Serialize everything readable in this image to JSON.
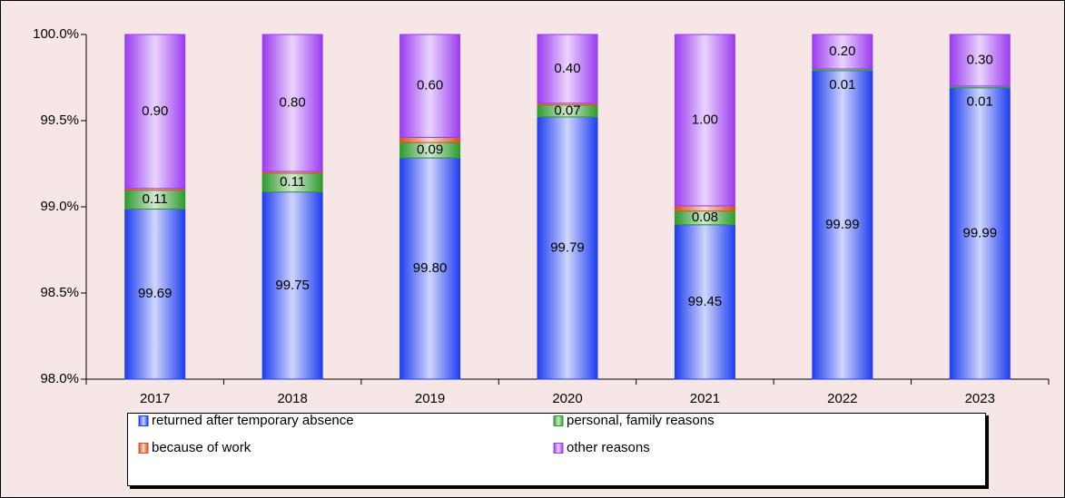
{
  "chart_data": {
    "type": "bar",
    "stacking": "percent",
    "categories": [
      "2017",
      "2018",
      "2019",
      "2020",
      "2021",
      "2022",
      "2023"
    ],
    "series": [
      {
        "name": "returned after temporary absence",
        "color": "#1f3ff0",
        "values": [
          99.69,
          99.75,
          99.8,
          99.79,
          99.45,
          99.99,
          99.99
        ]
      },
      {
        "name": "personal, family reasons",
        "color": "#2f9a2f",
        "values": [
          0.11,
          0.11,
          0.09,
          0.07,
          0.08,
          0.01,
          0.01
        ]
      },
      {
        "name": "because of work",
        "color": "#d2541e",
        "values": [
          0.01,
          0.01,
          0.03,
          0.01,
          0.03,
          null,
          null
        ]
      },
      {
        "name": "other reasons",
        "color": "#9b3cf0",
        "values": [
          0.9,
          0.8,
          0.6,
          0.4,
          1.0,
          0.2,
          0.3
        ]
      }
    ],
    "value_labels": [
      [
        "99.69",
        "99.75",
        "99.80",
        "99.79",
        "99.45",
        "99.99",
        "99.99"
      ],
      [
        "0.11",
        "0.11",
        "0.09",
        "0.07",
        "0.08",
        "0.01",
        "0.01"
      ],
      [
        "0.01",
        "0.01",
        "0.03",
        "0.01",
        "0.03",
        null,
        null
      ],
      [
        "0.90",
        "0.80",
        "0.60",
        "0.40",
        "1.00",
        "0.20",
        "0.30"
      ]
    ],
    "ylim": [
      98,
      100
    ],
    "yticks": [
      {
        "value": 98,
        "label": "98.0%"
      },
      {
        "value": 98.5,
        "label": "98.5%"
      },
      {
        "value": 99,
        "label": "99.0%"
      },
      {
        "value": 99.5,
        "label": "99.5%"
      },
      {
        "value": 100,
        "label": "100.0%"
      }
    ],
    "grid": false,
    "legend": "bottom"
  }
}
